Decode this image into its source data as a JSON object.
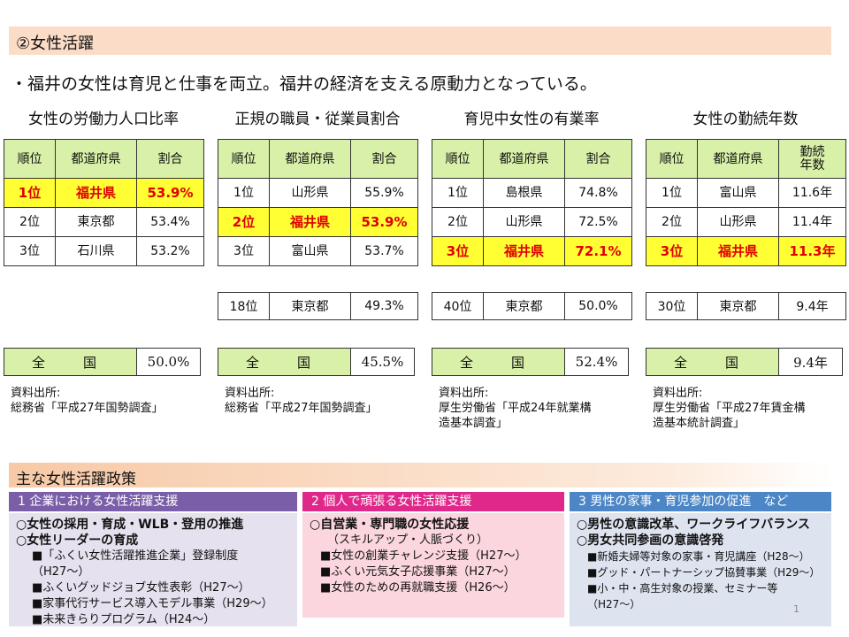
{
  "title": "②女性活躍",
  "lead": "・福井の女性は育児と仕事を両立。福井の経済を支える原動力となっている。",
  "sections": [
    {
      "title": "女性の労働力人口比率",
      "headers": [
        "順位",
        "都道府県",
        "割合"
      ],
      "rows": [
        {
          "rank": "1位",
          "pref": "福井県",
          "value": "53.9%"
        },
        {
          "rank": "2位",
          "pref": "東京都",
          "value": "53.4%"
        },
        {
          "rank": "3位",
          "pref": "石川県",
          "value": "53.2%"
        }
      ],
      "national_label": "全　国",
      "national_value": "50.0%",
      "source": [
        "資料出所:",
        "総務省「平成27年国勢調査」"
      ]
    },
    {
      "title": "正規の職員・従業員割合",
      "headers": [
        "順位",
        "都道府県",
        "割合"
      ],
      "rows": [
        {
          "rank": "1位",
          "pref": "山形県",
          "value": "55.9%"
        },
        {
          "rank": "2位",
          "pref": "福井県",
          "value": "53.9%"
        },
        {
          "rank": "3位",
          "pref": "富山県",
          "value": "53.7%"
        }
      ],
      "extra": {
        "rank": "18位",
        "pref": "東京都",
        "value": "49.3%"
      },
      "national_label": "全　国",
      "national_value": "45.5%",
      "source": [
        "資料出所:",
        "総務省「平成27年国勢調査」"
      ]
    },
    {
      "title": "育児中女性の有業率",
      "headers": [
        "順位",
        "都道府県",
        "割合"
      ],
      "rows": [
        {
          "rank": "1位",
          "pref": "島根県",
          "value": "74.8%"
        },
        {
          "rank": "2位",
          "pref": "山形県",
          "value": "72.5%"
        },
        {
          "rank": "3位",
          "pref": "福井県",
          "value": "72.1%"
        }
      ],
      "extra": {
        "rank": "40位",
        "pref": "東京都",
        "value": "50.0%"
      },
      "national_label": "全　国",
      "national_value": "52.4%",
      "source": [
        "資料出所:",
        "厚生労働省「平成24年就業構",
        "造基本調査」"
      ]
    },
    {
      "title": "女性の勤続年数",
      "headers": [
        "順位",
        "都道府県",
        "勤続年数"
      ],
      "rows": [
        {
          "rank": "1位",
          "pref": "富山県",
          "value": "11.6年"
        },
        {
          "rank": "2位",
          "pref": "山形県",
          "value": "11.4年"
        },
        {
          "rank": "3位",
          "pref": "福井県",
          "value": "11.3年"
        }
      ],
      "extra": {
        "rank": "30位",
        "pref": "東京都",
        "value": "9.4年"
      },
      "national_label": "全　国",
      "national_value": "9.4年",
      "source": [
        "資料出所:",
        "厚生労働省「平成27年賃金構",
        "造基本統計調査」"
      ]
    }
  ],
  "policy_title": "主な女性活躍政策",
  "policies": [
    {
      "tab": "1 企業における女性活躍支援",
      "lines": [
        "○女性の採用・育成・WLB・登用の推進",
        "○女性リーダーの育成"
      ],
      "sub": [
        "■「ふくい女性活躍推進企業」登録制度（H27〜）",
        "■ふくいグッドジョブ女性表彰（H27〜）",
        "■家事代行サービス導入モデル事業（H29〜）",
        "■未来きらりプログラム（H24〜）"
      ]
    },
    {
      "tab": "2 個人で頑張る女性活躍支援",
      "lines": [
        "○自営業・専門職の女性応援"
      ],
      "note": "（スキルアップ・人脈づくり）",
      "sub": [
        "■女性の創業チャレンジ支援（H27〜）",
        "■ふくい元気女子応援事業（H27〜）",
        "■女性のための再就職支援（H26〜）"
      ]
    },
    {
      "tab": "3 男性の家事・育児参加の促進　など",
      "lines": [
        "○男性の意識改革、ワークライフバランス",
        "○男女共同参画の意識啓発"
      ],
      "sub": [
        "■新婚夫婦等対象の家事・育児講座（H28〜）",
        "■グッド・パートナーシップ協賛事業（H29〜）",
        "■小・中・高生対象の授業、セミナー等（H27〜）"
      ]
    }
  ],
  "page_number": "1",
  "colors": {
    "highlight": "#ffff33",
    "highlight_text": "#e00000",
    "header_green": "#d8f0a8",
    "tab1": "#7a5ea8",
    "tab2": "#e0278a",
    "tab3": "#4c86c6"
  }
}
